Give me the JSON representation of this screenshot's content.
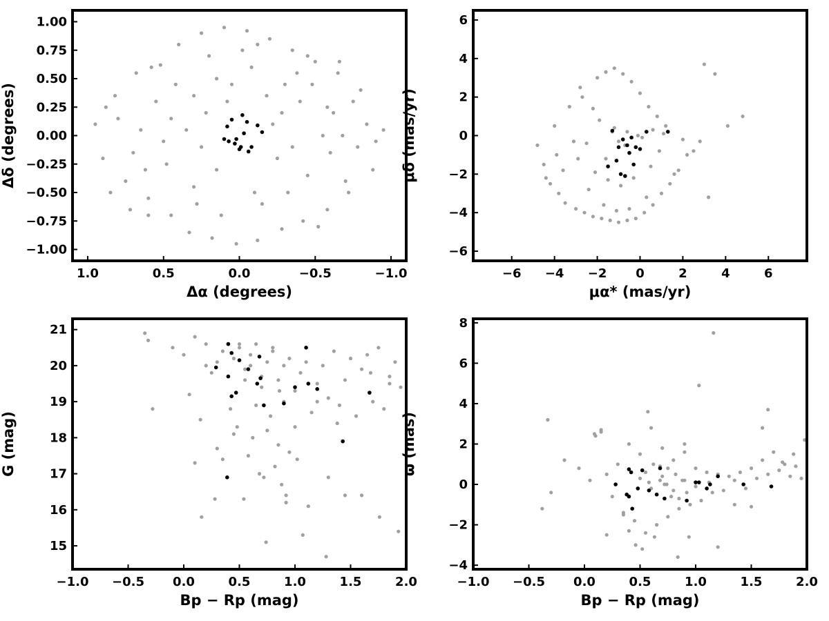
{
  "colors": {
    "field": "#a0a0a0",
    "members": "#000000"
  },
  "chart_data": [
    {
      "type": "scatter",
      "id": "positions",
      "xlabel": "Δα (degrees)",
      "ylabel": "Δδ (degrees)",
      "xlim": [
        1.1,
        -1.1
      ],
      "ylim": [
        -1.1,
        1.1
      ],
      "xticks": [
        1.0,
        0.5,
        0.0,
        -0.5,
        -1.0
      ],
      "xtick_labels": [
        "1.0",
        "0.5",
        "0.0",
        "−0.5",
        "−1.0"
      ],
      "yticks": [
        1.0,
        0.75,
        0.5,
        0.25,
        0.0,
        -0.25,
        -0.5,
        -0.75,
        -1.0
      ],
      "ytick_labels": [
        "1.00",
        "0.75",
        "0.50",
        "0.25",
        "0.00",
        "−0.25",
        "−0.50",
        "−0.75",
        "−1.00"
      ],
      "series": [
        {
          "role": "field",
          "color": "#a0a0a0",
          "x": [
            0.95,
            0.9,
            0.82,
            0.75,
            0.68,
            0.6,
            0.52,
            0.45,
            0.4,
            0.33,
            0.25,
            0.18,
            0.1,
            0.02,
            -0.05,
            -0.12,
            -0.2,
            -0.28,
            -0.35,
            -0.42,
            -0.5,
            -0.58,
            -0.65,
            -0.72,
            -0.8,
            -0.88,
            -0.95,
            0.88,
            0.7,
            0.55,
            0.3,
            0.15,
            -0.15,
            -0.3,
            -0.45,
            -0.62,
            -0.78,
            -0.9,
            0.62,
            0.48,
            0.22,
            -0.08,
            -0.25,
            -0.4,
            -0.55,
            -0.7,
            0.8,
            0.65,
            0.35,
            0.05,
            -0.18,
            -0.48,
            -0.66,
            -0.84,
            0.42,
            0.28,
            0.12,
            -0.02,
            -0.32,
            -0.6,
            0.72,
            0.58,
            0.2,
            -0.1,
            -0.38,
            -0.52,
            -0.75,
            0.85,
            0.5,
            0.08,
            -0.22,
            -0.68,
            0.3,
            -0.35,
            0.6,
            -0.58,
            0.15,
            -0.12,
            0.45,
            -0.45,
            0.25,
            -0.28
          ],
          "y": [
            0.1,
            -0.2,
            0.35,
            -0.4,
            0.55,
            -0.55,
            0.62,
            -0.7,
            0.8,
            -0.85,
            0.9,
            -0.9,
            0.95,
            -0.95,
            0.92,
            -0.92,
            0.85,
            -0.82,
            0.75,
            -0.75,
            0.65,
            -0.65,
            0.55,
            -0.5,
            0.4,
            -0.3,
            0.05,
            0.25,
            -0.15,
            0.3,
            -0.45,
            0.5,
            -0.6,
            0.45,
            -0.35,
            0.2,
            -0.1,
            -0.05,
            -0.3,
            -0.25,
            0.2,
            0.6,
            -0.2,
            0.3,
            0.0,
            -0.4,
            0.15,
            0.05,
            0.05,
            0.45,
            0.35,
            0.45,
            0.65,
            0.1,
            0.45,
            -0.6,
            -0.7,
            0.75,
            -0.5,
            -0.15,
            -0.65,
            0.6,
            0.7,
            -0.5,
            0.55,
            -0.8,
            0.3,
            -0.5,
            -0.05,
            0.3,
            0.1,
            0.0,
            0.35,
            -0.1,
            -0.7,
            0.25,
            -0.3,
            0.8,
            0.15,
            0.7,
            -0.1,
            0.2
          ]
        },
        {
          "role": "members",
          "color": "#000000",
          "x": [
            0.08,
            0.05,
            0.02,
            -0.02,
            -0.05,
            -0.08,
            -0.12,
            -0.15,
            0.0,
            0.03,
            -0.03,
            -0.06,
            0.1,
            0.07,
            -0.01
          ],
          "y": [
            0.08,
            0.14,
            -0.03,
            0.18,
            0.12,
            -0.1,
            0.09,
            0.03,
            -0.12,
            -0.07,
            0.02,
            -0.14,
            -0.03,
            -0.05,
            -0.1
          ]
        }
      ]
    },
    {
      "type": "scatter",
      "id": "proper-motions",
      "xlabel": "μα* (mas/yr)",
      "ylabel": "μδ (mas/yr)",
      "xlim": [
        -7.8,
        7.8
      ],
      "ylim": [
        -6.5,
        6.5
      ],
      "xticks": [
        -6,
        -4,
        -2,
        0,
        2,
        4,
        6
      ],
      "xtick_labels": [
        "−6",
        "−4",
        "−2",
        "0",
        "2",
        "4",
        "6"
      ],
      "yticks": [
        6,
        4,
        2,
        0,
        -2,
        -4,
        -6
      ],
      "ytick_labels": [
        "6",
        "4",
        "2",
        "0",
        "−2",
        "−4",
        "−6"
      ],
      "series": [
        {
          "role": "field",
          "color": "#a0a0a0",
          "x": [
            -4.8,
            -4.5,
            -4.2,
            -3.8,
            -3.5,
            -3.0,
            -2.6,
            -2.2,
            -1.8,
            -1.4,
            -1.0,
            -0.6,
            -0.2,
            0.2,
            0.6,
            1.0,
            1.4,
            1.8,
            2.2,
            2.8,
            3.2,
            -4.0,
            -3.3,
            -2.8,
            -2.0,
            -1.6,
            -1.2,
            -0.8,
            -0.4,
            0.0,
            0.4,
            0.8,
            1.2,
            -3.6,
            -2.4,
            -1.7,
            -1.1,
            -0.5,
            0.3,
            1.6,
            -2.9,
            -2.1,
            -1.5,
            -0.9,
            -0.3,
            0.5,
            2.5,
            4.1,
            4.8,
            -4.4,
            -3.1,
            -1.9,
            -1.3,
            -0.7,
            -0.1,
            0.9,
            2.0,
            3.5,
            -2.5,
            -1.0,
            0.1,
            1.1,
            -1.6,
            -1.2,
            -0.6,
            -2.2,
            0.6,
            3.0,
            -3.9,
            -2.7
          ],
          "y": [
            -0.5,
            -1.5,
            -2.5,
            -3.0,
            -3.5,
            -3.8,
            -4.0,
            -4.2,
            -4.3,
            -4.4,
            -4.5,
            -4.4,
            -4.3,
            -4.0,
            -3.6,
            -3.0,
            -2.5,
            -1.8,
            -1.0,
            -0.3,
            -3.2,
            0.5,
            1.5,
            2.5,
            3.0,
            3.3,
            3.5,
            3.2,
            2.8,
            2.2,
            1.5,
            1.0,
            0.5,
            -1.8,
            -2.8,
            -3.6,
            -3.9,
            -3.8,
            -3.2,
            -2.0,
            -1.2,
            -1.9,
            -2.3,
            -2.6,
            -2.2,
            -1.6,
            -0.8,
            0.5,
            1.0,
            -2.2,
            -0.3,
            0.8,
            0.2,
            -0.5,
            0.0,
            -0.8,
            -0.2,
            3.2,
            -0.4,
            -0.3,
            -0.1,
            0.1,
            -1.2,
            0.4,
            0.2,
            1.4,
            0.3,
            3.7,
            -1.0,
            2.0
          ]
        },
        {
          "role": "members",
          "color": "#000000",
          "x": [
            -1.3,
            -1.0,
            -0.8,
            -0.6,
            -0.4,
            -0.2,
            0.0,
            0.3,
            1.3,
            -1.5,
            -1.1,
            -0.9,
            -0.7,
            -0.3,
            -0.5
          ],
          "y": [
            0.25,
            -0.6,
            -0.2,
            -0.5,
            -0.1,
            -0.6,
            -0.7,
            0.2,
            0.2,
            -1.6,
            -1.3,
            -2.0,
            -2.1,
            -1.5,
            -0.9
          ]
        }
      ]
    },
    {
      "type": "scatter",
      "id": "cmd",
      "xlabel": "Bp − Rp (mag)",
      "ylabel": "G (mag)",
      "xlim": [
        -1.0,
        2.0
      ],
      "ylim": [
        14.35,
        21.3
      ],
      "xticks": [
        -1.0,
        -0.5,
        0.0,
        0.5,
        1.0,
        1.5,
        2.0
      ],
      "xtick_labels": [
        "−1.0",
        "−0.5",
        "0.0",
        "0.5",
        "1.0",
        "1.5",
        "2.0"
      ],
      "yticks": [
        21,
        20,
        19,
        18,
        17,
        16,
        15
      ],
      "ytick_labels": [
        "21",
        "20",
        "19",
        "18",
        "17",
        "16",
        "15"
      ],
      "series": [
        {
          "role": "field",
          "color": "#a0a0a0",
          "x": [
            -0.35,
            -0.32,
            -0.28,
            -0.1,
            0.0,
            0.05,
            0.1,
            0.15,
            0.2,
            0.25,
            0.3,
            0.35,
            0.4,
            0.45,
            0.5,
            0.55,
            0.6,
            0.65,
            0.7,
            0.75,
            0.8,
            0.85,
            0.9,
            0.95,
            1.0,
            1.05,
            1.1,
            1.15,
            1.2,
            1.25,
            1.3,
            1.35,
            1.4,
            1.45,
            1.5,
            1.55,
            1.6,
            1.65,
            1.7,
            1.75,
            1.8,
            1.85,
            1.9,
            1.95,
            0.5,
            0.6,
            0.7,
            0.8,
            0.9,
            1.0,
            0.55,
            0.65,
            0.75,
            0.85,
            0.95,
            0.58,
            0.68,
            0.78,
            0.88,
            0.62,
            0.72,
            0.82,
            0.92,
            1.02,
            1.12,
            0.45,
            0.35,
            0.28,
            1.3,
            1.45,
            0.1,
            0.16,
            0.92,
            1.07,
            1.28,
            0.54,
            0.74,
            1.6,
            1.76,
            1.93,
            0.3,
            0.48,
            0.86,
            1.2,
            1.38,
            1.68,
            1.85,
            0.2,
            0.42
          ],
          "y": [
            20.9,
            20.7,
            18.8,
            20.5,
            20.3,
            19.2,
            20.8,
            18.5,
            20.6,
            19.8,
            20.1,
            20.4,
            20.6,
            20.2,
            20.5,
            19.9,
            20.3,
            20.6,
            19.7,
            20.1,
            20.4,
            19.6,
            20.0,
            20.2,
            19.3,
            19.8,
            20.1,
            18.7,
            19.5,
            20.0,
            19.1,
            20.4,
            18.9,
            19.6,
            20.2,
            18.6,
            19.9,
            20.3,
            19.0,
            20.5,
            18.8,
            19.7,
            20.1,
            19.4,
            20.6,
            20.0,
            19.4,
            20.5,
            19.0,
            18.3,
            19.6,
            18.9,
            18.2,
            17.8,
            17.6,
            17.5,
            17.0,
            18.6,
            16.7,
            18.0,
            16.9,
            17.2,
            16.4,
            17.4,
            16.1,
            18.1,
            17.4,
            16.3,
            16.9,
            16.4,
            17.3,
            15.8,
            16.2,
            15.3,
            14.7,
            16.3,
            15.1,
            16.4,
            15.8,
            15.4,
            17.7,
            18.3,
            19.3,
            19.0,
            18.4,
            19.8,
            19.5,
            20.0,
            18.8
          ]
        },
        {
          "role": "members",
          "color": "#000000",
          "x": [
            0.4,
            0.43,
            0.5,
            0.58,
            0.68,
            0.29,
            0.4,
            0.47,
            0.66,
            0.69,
            0.43,
            0.72,
            1.0,
            1.12,
            1.2,
            0.9,
            1.67,
            1.43,
            0.39,
            1.1
          ],
          "y": [
            20.6,
            20.35,
            20.15,
            19.9,
            20.25,
            19.95,
            19.7,
            19.25,
            19.5,
            19.65,
            19.15,
            18.9,
            19.4,
            19.5,
            19.35,
            18.95,
            19.25,
            17.9,
            16.9,
            20.5
          ]
        }
      ]
    },
    {
      "type": "scatter",
      "id": "parallax",
      "xlabel": "Bp − Rp (mag)",
      "ylabel": "ϖ (mas)",
      "xlim": [
        -1.0,
        2.0
      ],
      "ylim": [
        -4.2,
        8.2
      ],
      "xticks": [
        -1.0,
        -0.5,
        0.0,
        0.5,
        1.0,
        1.5,
        2.0
      ],
      "xtick_labels": [
        "−1.0",
        "−0.5",
        "0.0",
        "0.5",
        "1.0",
        "1.5",
        "2.0"
      ],
      "yticks": [
        8,
        6,
        4,
        2,
        0,
        -2,
        -4
      ],
      "ytick_labels": [
        "8",
        "6",
        "4",
        "2",
        "0",
        "−2",
        "−4"
      ],
      "series": [
        {
          "role": "field",
          "color": "#a0a0a0",
          "x": [
            -0.33,
            -0.3,
            -0.38,
            -0.18,
            -0.05,
            0.05,
            0.1,
            0.15,
            0.2,
            0.25,
            0.3,
            0.35,
            0.4,
            0.45,
            0.5,
            0.55,
            0.6,
            0.65,
            0.7,
            0.75,
            0.8,
            0.85,
            0.9,
            0.95,
            1.0,
            1.05,
            1.1,
            1.15,
            1.2,
            1.25,
            1.3,
            1.35,
            1.4,
            1.45,
            1.5,
            1.55,
            1.6,
            1.65,
            1.7,
            1.75,
            1.8,
            1.85,
            1.9,
            1.95,
            1.98,
            0.5,
            0.6,
            0.7,
            0.8,
            0.9,
            1.0,
            0.55,
            0.65,
            0.75,
            0.85,
            0.62,
            0.72,
            0.82,
            0.92,
            0.58,
            0.68,
            0.78,
            0.88,
            1.16,
            1.03,
            0.57,
            0.9,
            1.65,
            1.5,
            1.2,
            0.4,
            0.35,
            0.46,
            0.52,
            0.63,
            0.94,
            0.84,
            0.2,
            0.09,
            0.15,
            1.35,
            1.78,
            1.88,
            1.6,
            0.74,
            0.68,
            1.12,
            0.28
          ],
          "y": [
            3.2,
            -0.4,
            -1.2,
            1.2,
            0.8,
            0.2,
            2.4,
            2.6,
            0.5,
            -0.6,
            1.0,
            -1.4,
            2.0,
            -1.8,
            1.5,
            -2.4,
            2.8,
            -2.0,
            1.8,
            -1.6,
            1.2,
            -1.2,
            1.6,
            -1.0,
            0.8,
            -0.8,
            0.6,
            -0.4,
            0.5,
            -0.3,
            0.4,
            0.2,
            0.6,
            -0.2,
            0.8,
            0.3,
            1.2,
            0.5,
            1.6,
            0.7,
            1.0,
            0.4,
            0.9,
            0.3,
            2.2,
            0.3,
            -0.2,
            0.4,
            -0.3,
            0.2,
            -0.1,
            0.6,
            -0.5,
            0.8,
            -0.7,
            1.0,
            0.0,
            0.5,
            -0.4,
            0.1,
            0.9,
            -0.6,
            0.2,
            7.5,
            4.9,
            3.6,
            2.0,
            3.7,
            -1.1,
            -3.1,
            -2.3,
            -1.5,
            -3.0,
            -3.2,
            -2.6,
            -2.6,
            -3.6,
            -2.5,
            2.5,
            2.7,
            -1.0,
            1.1,
            1.5,
            2.8,
            0.0,
            0.2,
            0.1,
            0.0
          ]
        },
        {
          "role": "members",
          "color": "#000000",
          "x": [
            0.28,
            0.38,
            0.4,
            0.42,
            0.43,
            0.48,
            0.52,
            0.58,
            0.65,
            0.68,
            0.72,
            0.92,
            1.0,
            1.03,
            1.1,
            1.13,
            1.2,
            1.43,
            1.68,
            0.4
          ],
          "y": [
            0.0,
            -0.5,
            0.75,
            0.6,
            -1.2,
            -0.2,
            0.7,
            -0.3,
            -0.5,
            0.8,
            -0.7,
            -0.8,
            0.1,
            0.1,
            -0.2,
            0.0,
            0.4,
            0.0,
            -0.1,
            -0.6
          ]
        }
      ]
    }
  ]
}
